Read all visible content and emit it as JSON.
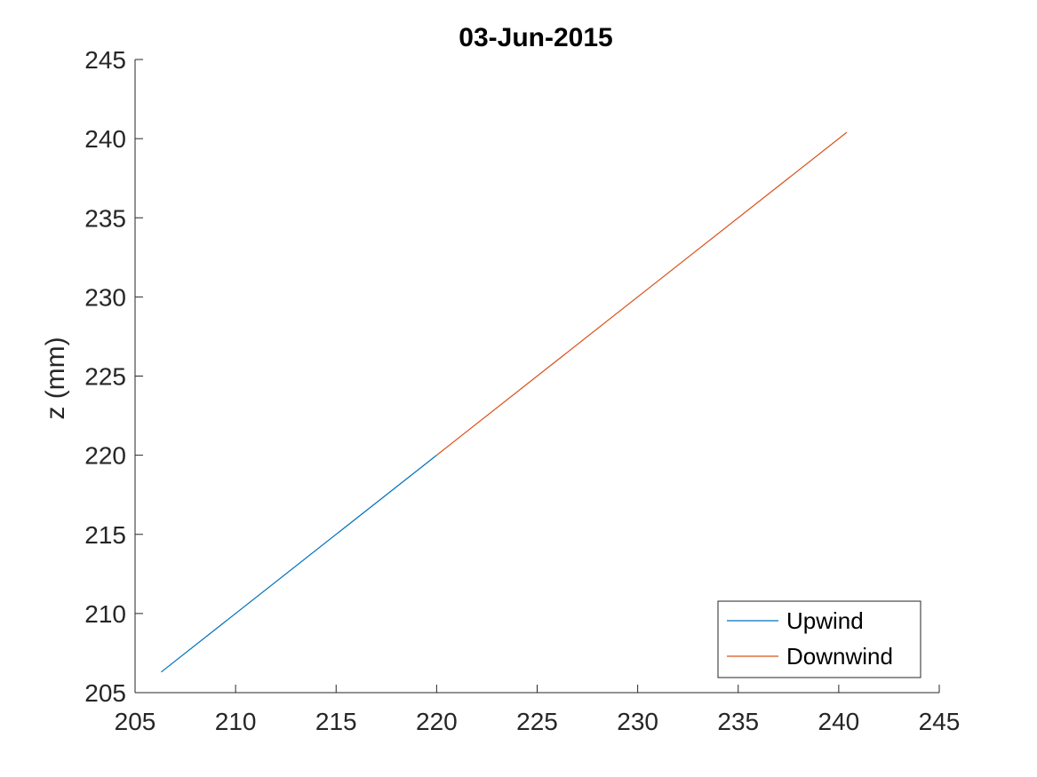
{
  "chart_data": {
    "type": "line",
    "title": "03-Jun-2015",
    "xlabel": "",
    "ylabel": "z (mm)",
    "xlim": [
      205,
      245
    ],
    "ylim": [
      205,
      245
    ],
    "xticks": [
      205,
      210,
      215,
      220,
      225,
      230,
      235,
      240,
      245
    ],
    "yticks": [
      205,
      210,
      215,
      220,
      225,
      230,
      235,
      240,
      245
    ],
    "grid": false,
    "legend_position": "bottom-right",
    "series": [
      {
        "name": "Upwind",
        "color": "#0072BD",
        "x": [
          206.3,
          220.0
        ],
        "y": [
          206.3,
          220.0
        ]
      },
      {
        "name": "Downwind",
        "color": "#D95319",
        "x": [
          220.0,
          240.4
        ],
        "y": [
          220.0,
          240.4
        ]
      }
    ]
  }
}
